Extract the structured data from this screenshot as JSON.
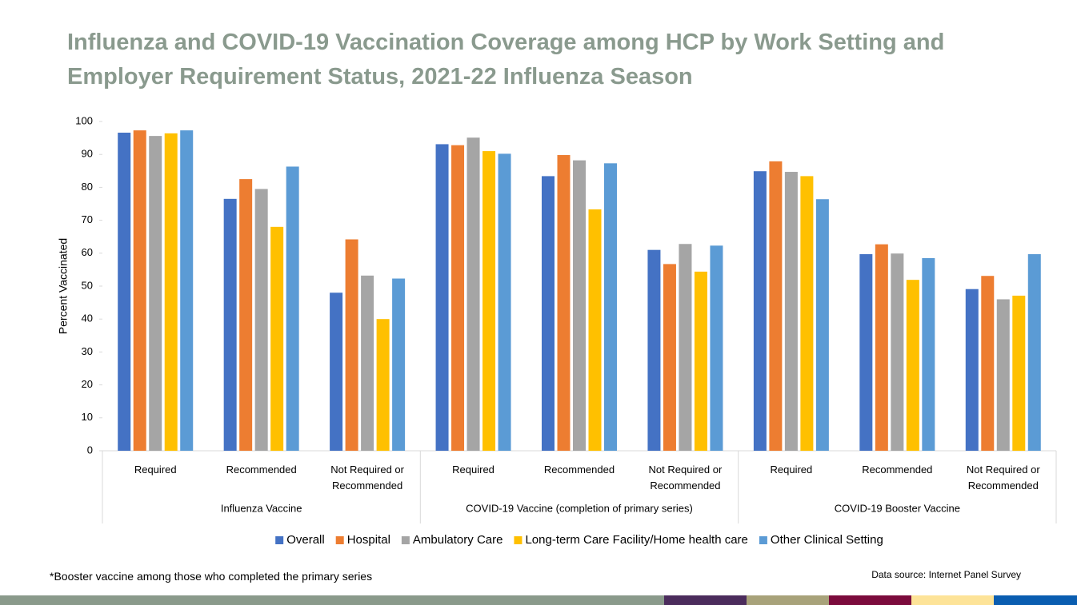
{
  "chart_data": {
    "type": "bar",
    "title": "Influenza and COVID-19 Vaccination Coverage among HCP by Work Setting and Employer Requirement Status, 2021-22 Influenza Season",
    "y_label": "Percent Vaccinated",
    "categories": [
      "Required",
      "Recommended",
      "Not Required or Recommended",
      "Required",
      "Recommended",
      "Not Required or Recommended",
      "Required",
      "Recommended",
      "Not Required or Recommended"
    ],
    "groups": [
      "Influenza Vaccine",
      "COVID-19 Vaccine (completion of primary series)",
      "COVID-19 Booster Vaccine"
    ],
    "series": [
      {
        "name": "Overall",
        "color": "#4472c4",
        "values": [
          96.6,
          76.5,
          48,
          93.1,
          83.4,
          61,
          84.9,
          59.7,
          49.1
        ]
      },
      {
        "name": "Hospital",
        "color": "#ed7d31",
        "values": [
          97.3,
          82.5,
          64.2,
          92.8,
          89.8,
          56.7,
          87.9,
          62.7,
          53.1
        ]
      },
      {
        "name": "Ambulatory Care",
        "color": "#a5a5a5",
        "values": [
          95.6,
          79.5,
          53.2,
          95.1,
          88.2,
          62.8,
          84.7,
          59.9,
          46
        ]
      },
      {
        "name": "Long-term Care Facility/Home health care",
        "color": "#ffc000",
        "values": [
          96.4,
          68,
          40,
          91,
          73.3,
          54.4,
          83.4,
          51.9,
          47.1
        ]
      },
      {
        "name": "Other Clinical Setting",
        "color": "#5b9bd5",
        "values": [
          97.3,
          86.3,
          52.3,
          90.2,
          87.3,
          62.3,
          76.4,
          58.5,
          59.7
        ]
      }
    ],
    "ylim": [
      0,
      100
    ],
    "yticks": [
      0,
      10,
      20,
      30,
      40,
      50,
      60,
      70,
      80,
      90,
      100
    ],
    "legend": "bottom",
    "footnote": "*Booster vaccine among those who completed the primary series",
    "source": "Data source: Internet Panel Survey"
  }
}
